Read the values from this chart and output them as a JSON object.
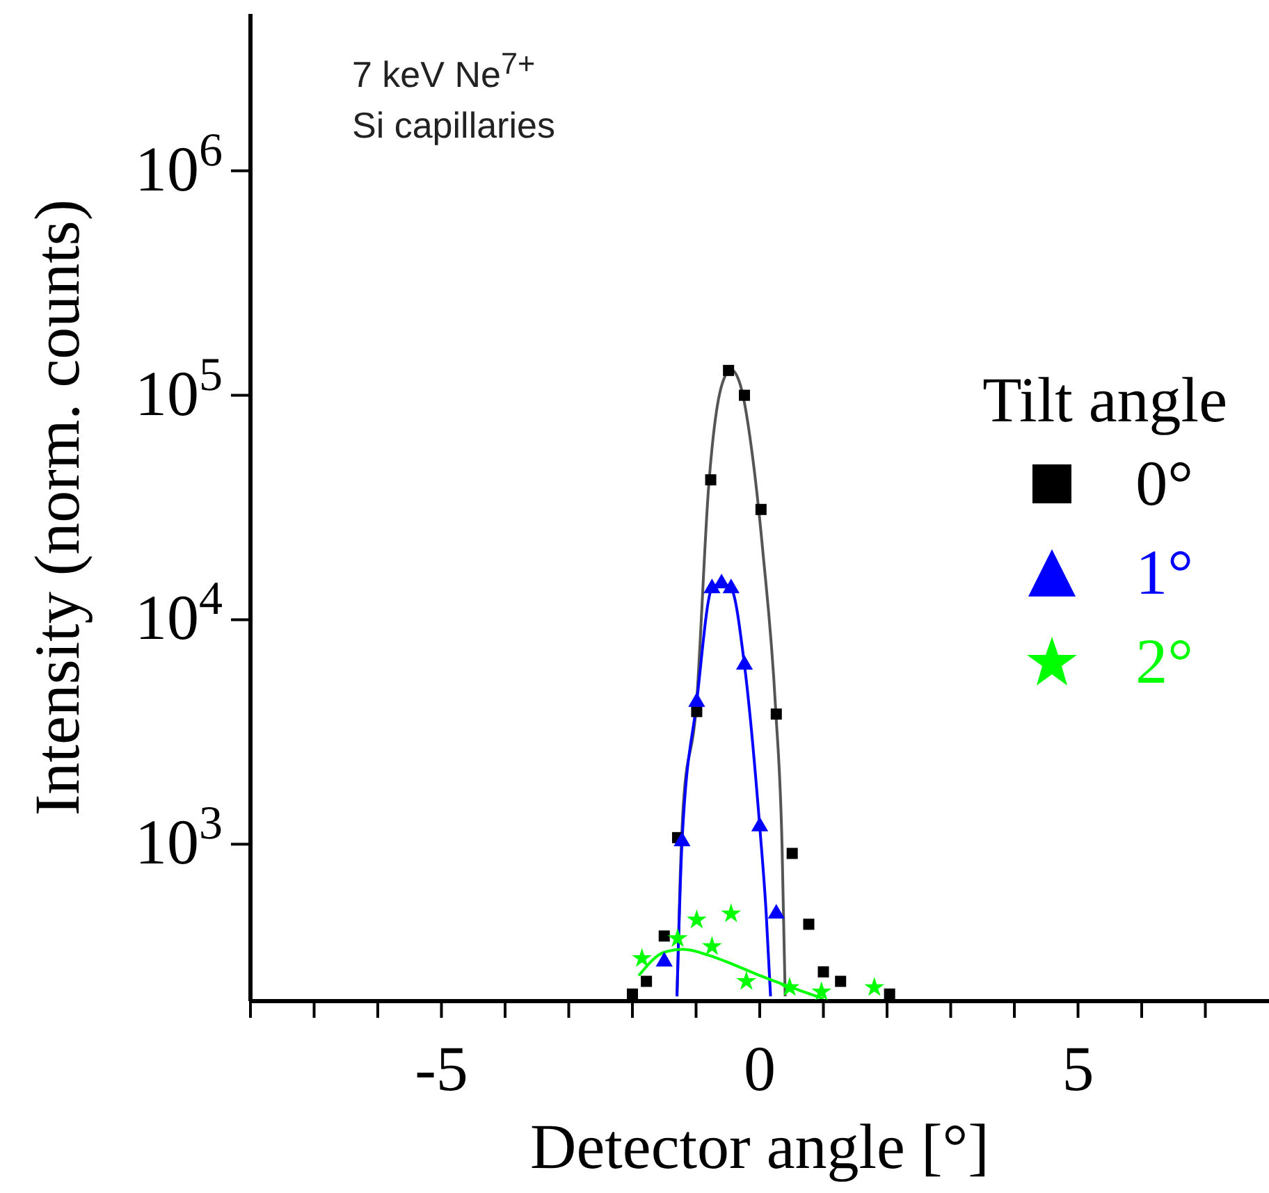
{
  "chart_data": {
    "type": "scatter",
    "xlabel": "Detector angle [°]",
    "ylabel": "Intensity (norm. counts)",
    "legend_title": "Tilt angle",
    "annotations": [
      "7 keV Ne$^{7+}$",
      "Si capillaries"
    ],
    "xlim": [
      -8,
      8
    ],
    "xticks": [
      {
        "value": -8,
        "label": null
      },
      {
        "value": -7,
        "label": null
      },
      {
        "value": -6,
        "label": null
      },
      -5,
      {
        "value": -4,
        "label": null
      },
      {
        "value": -3,
        "label": null
      },
      {
        "value": -2,
        "label": null
      },
      {
        "value": -1,
        "label": null
      },
      0,
      {
        "value": 1,
        "label": null
      },
      {
        "value": 2,
        "label": null
      },
      {
        "value": 3,
        "label": null
      },
      {
        "value": 4,
        "label": null
      },
      5,
      {
        "value": 6,
        "label": null
      },
      {
        "value": 7,
        "label": null
      }
    ],
    "ylim": [
      200,
      5000000
    ],
    "yticks": [
      {
        "value": 1000,
        "label": "10$^{3}$"
      },
      {
        "value": 10000,
        "label": "10$^{4}$"
      },
      {
        "value": 100000,
        "label": "10$^{5}$"
      },
      {
        "value": 1000000,
        "label": "10$^{6}$"
      }
    ],
    "log": "y",
    "grid": false,
    "legend": "right",
    "series": [
      {
        "type": "scatter",
        "name": "0°",
        "color": "#000000",
        "marker": "square",
        "x": [
          -2.0,
          -1.78,
          -1.5,
          -1.29,
          -0.99,
          -0.77,
          -0.49,
          -0.24,
          0.02,
          0.26,
          0.51,
          0.77,
          1.0,
          1.27,
          2.04
        ],
        "values": [
          215,
          245,
          390,
          1070,
          3900,
          42000,
          129000,
          100000,
          31000,
          3800,
          910,
          440,
          270,
          245,
          215
        ]
      },
      {
        "type": "scatter",
        "name": "1°",
        "color": "#0000ff",
        "marker": "triangle",
        "x": [
          -1.5,
          -1.22,
          -0.99,
          -0.75,
          -0.6,
          -0.45,
          -0.24,
          0.0,
          0.26
        ],
        "values": [
          300,
          1030,
          4300,
          13800,
          14500,
          13800,
          6300,
          1200,
          490
        ]
      },
      {
        "type": "scatter",
        "name": "2°",
        "color": "#00ff00",
        "marker": "star",
        "x": [
          -1.85,
          -1.29,
          -0.99,
          -0.75,
          -0.45,
          -0.21,
          0.47,
          0.97,
          1.8
        ],
        "values": [
          310,
          380,
          460,
          350,
          490,
          245,
          230,
          220,
          230
        ]
      },
      {
        "type": "line",
        "color": "#555555",
        "marker": "none",
        "x": [
          -1.3,
          -1.25,
          -1.2,
          -1.0,
          -0.8,
          -0.6,
          -0.45,
          -0.3,
          -0.1,
          0.05,
          0.25,
          0.35,
          0.4
        ],
        "values": [
          210,
          700,
          1500,
          4000,
          40000,
          110000,
          130000,
          110000,
          50000,
          20000,
          4000,
          1000,
          210
        ]
      },
      {
        "type": "line",
        "color": "#0000ff",
        "marker": "none",
        "x": [
          -1.3,
          -1.22,
          -0.99,
          -0.75,
          -0.6,
          -0.45,
          -0.24,
          0.0,
          0.1,
          0.17
        ],
        "values": [
          210,
          1030,
          4300,
          13800,
          14500,
          13800,
          6300,
          1200,
          500,
          210
        ]
      },
      {
        "type": "line",
        "color": "#00ff00",
        "marker": "none",
        "x": [
          -1.9,
          -1.5,
          -1.2,
          -0.8,
          -0.4,
          0.0,
          0.5,
          1.0
        ],
        "values": [
          260,
          330,
          340,
          320,
          290,
          260,
          230,
          205
        ]
      }
    ]
  }
}
